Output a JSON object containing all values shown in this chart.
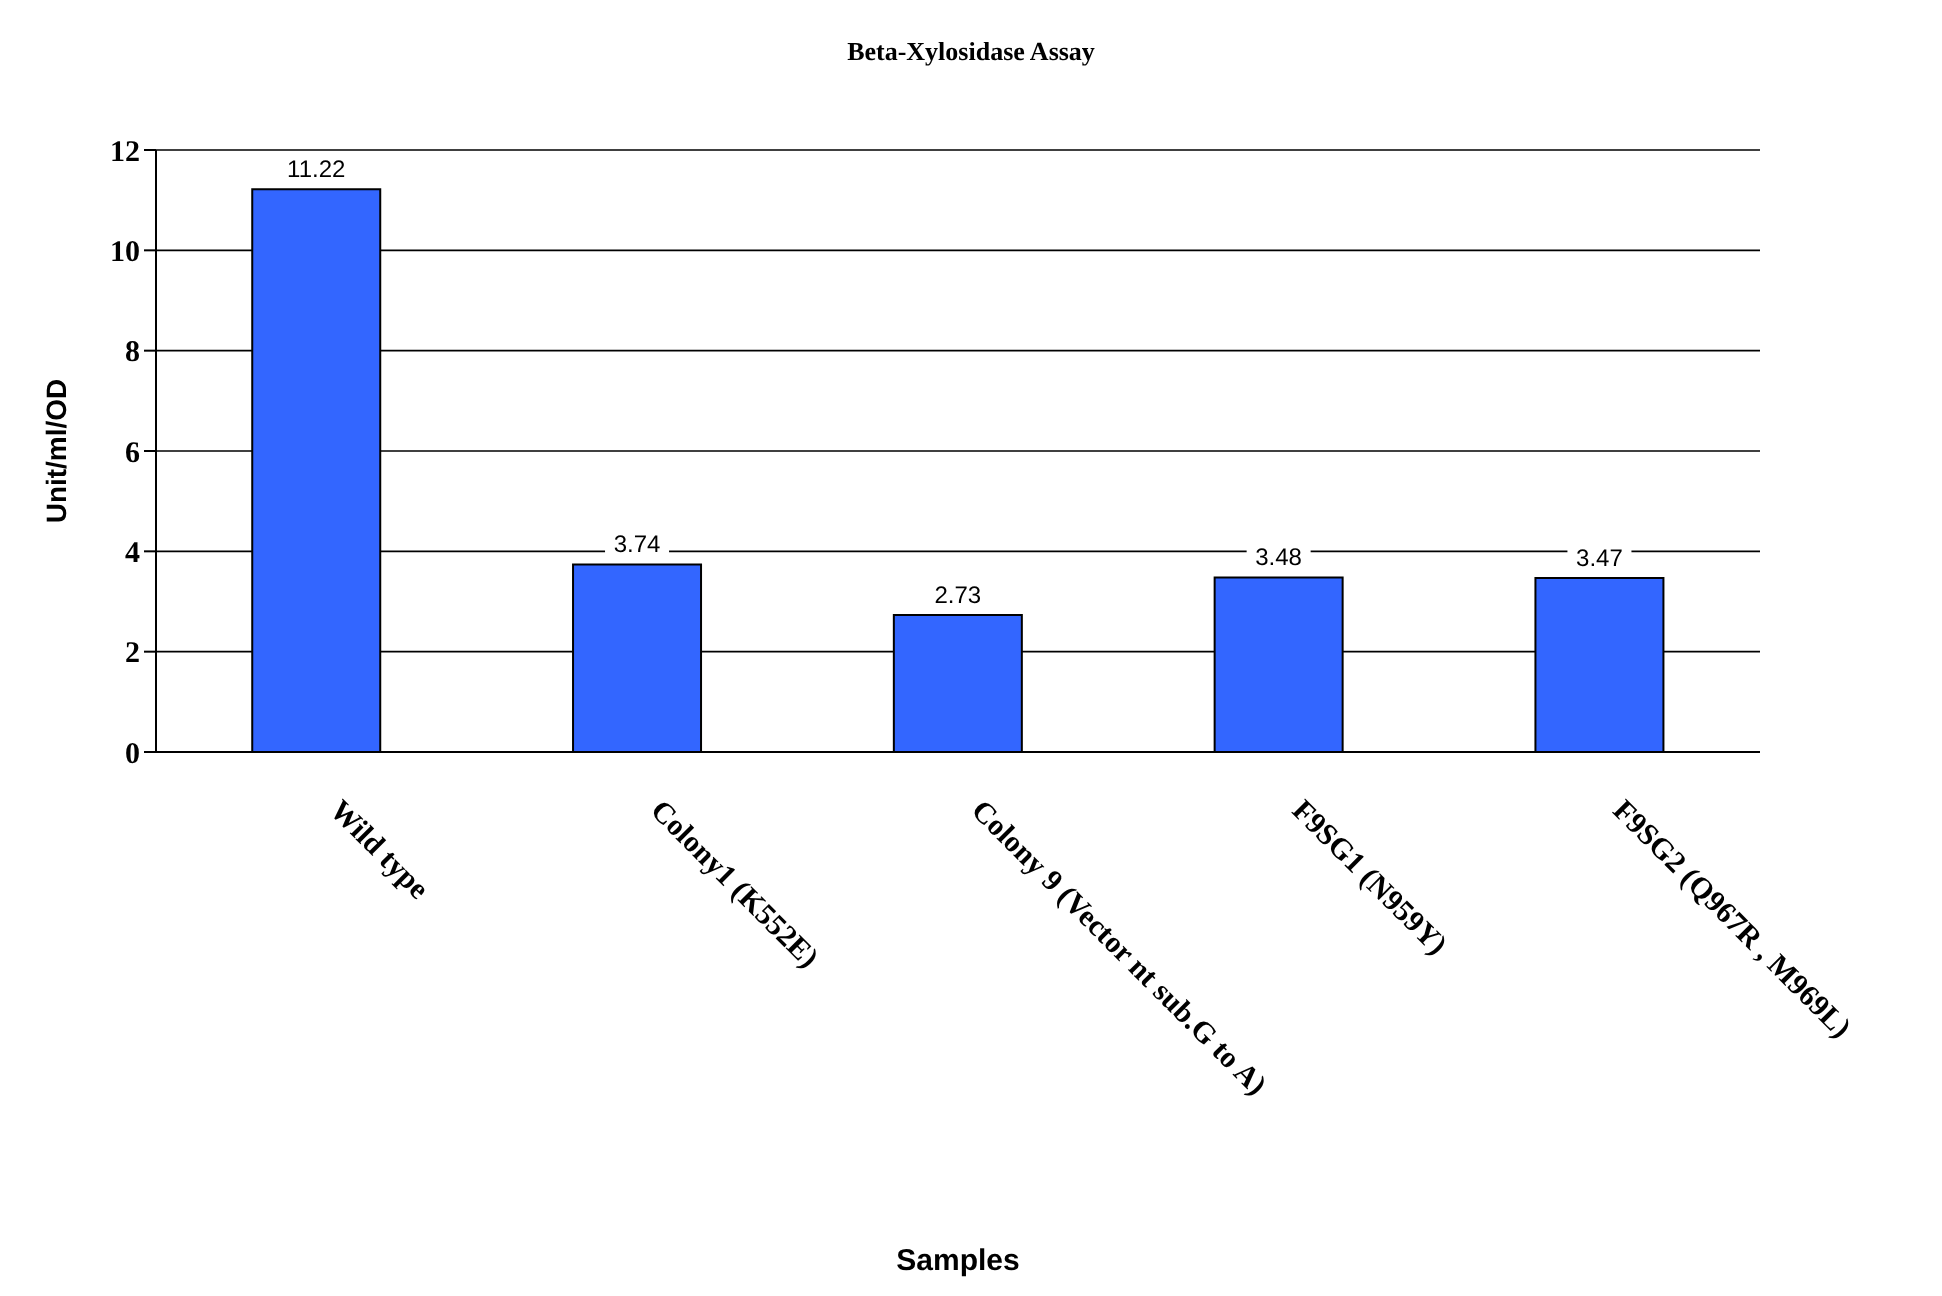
{
  "chart_data": {
    "type": "bar",
    "title": "Beta-Xylosidase Assay",
    "xlabel": "Samples",
    "ylabel": "Unit/ml/OD",
    "categories": [
      "Wild type",
      "Colony1 (K552E)",
      "Colony 9 (Vector nt sub.G to A)",
      "F9SG1 (N959Y)",
      "F9SG2 (Q967R , M969L)"
    ],
    "values": [
      11.22,
      3.74,
      2.73,
      3.48,
      3.47
    ],
    "color": "#3366ff",
    "ylim": [
      0,
      12
    ],
    "yticks": [
      0,
      2,
      4,
      6,
      8,
      10,
      12
    ],
    "grid": "y",
    "data_labels": true
  }
}
